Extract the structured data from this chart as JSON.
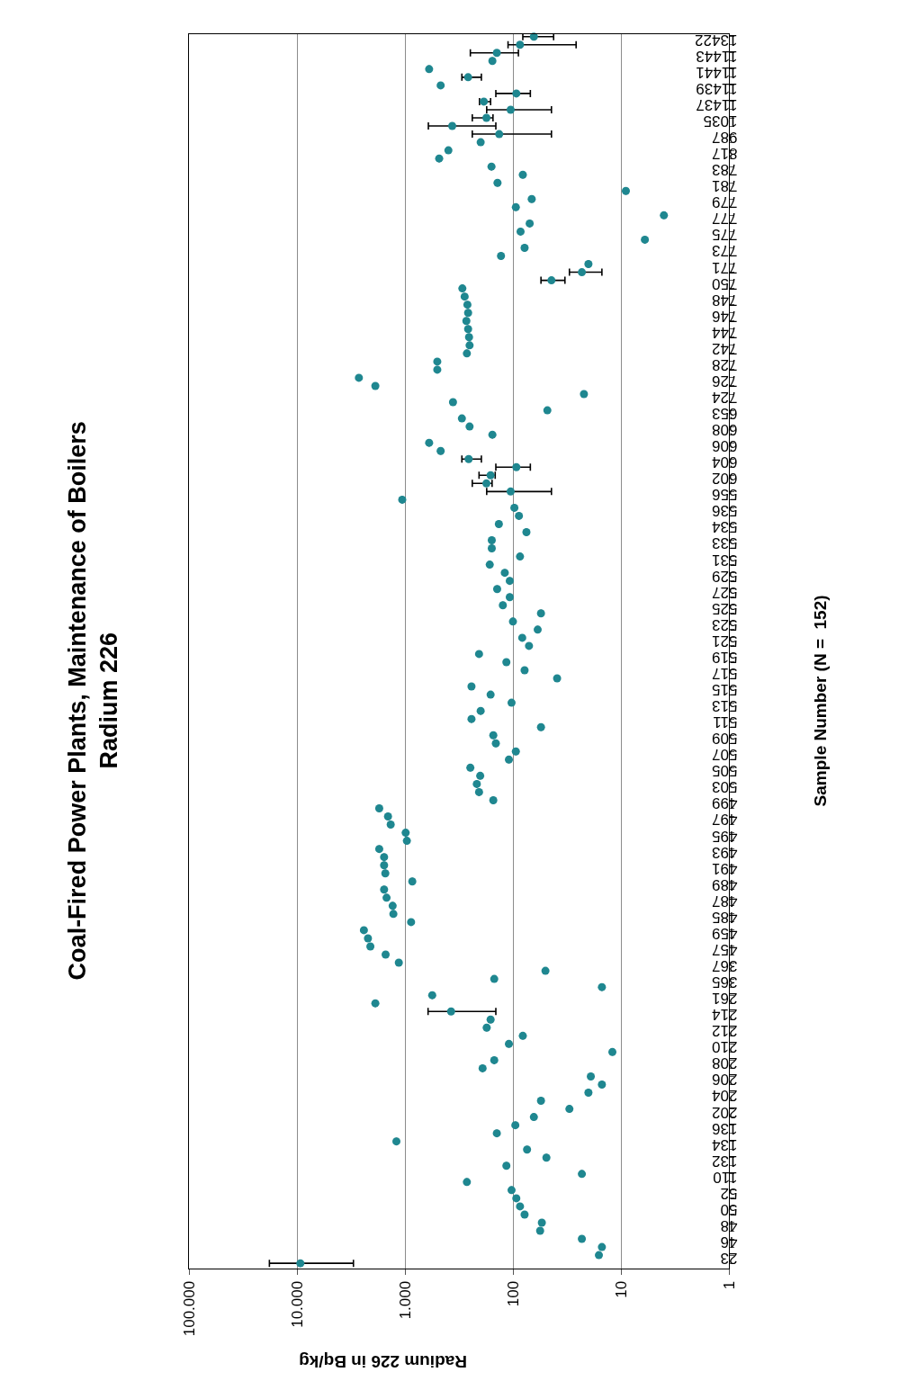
{
  "chart_data": {
    "type": "scatter",
    "title": "Coal-Fired Power Plants, Maintenance of Boilers\nRadium 226",
    "xlabel": "Radium 226 in Bq/kg",
    "ylabel": "Sample Number (N =  152)",
    "orientation": "horizontal",
    "log": "x",
    "xlim": [
      100000,
      1
    ],
    "xticks": [
      {
        "value": 100000,
        "label": "100.000"
      },
      {
        "value": 10000,
        "label": "10.000"
      },
      {
        "value": 1000,
        "label": "1.000"
      },
      100,
      10,
      1
    ],
    "grid": "x",
    "marker": "circle",
    "categories": [
      null,
      "13422",
      null,
      "11443",
      null,
      "11441",
      null,
      "11439",
      null,
      "11437",
      null,
      "1035",
      null,
      "987",
      null,
      "817",
      null,
      "783",
      null,
      "781",
      null,
      "779",
      null,
      "777",
      null,
      "775",
      null,
      "773",
      null,
      "771",
      null,
      "750",
      null,
      "748",
      null,
      "746",
      null,
      "744",
      null,
      "742",
      null,
      "728",
      null,
      "726",
      null,
      "724",
      null,
      "653",
      null,
      "608",
      null,
      "606",
      null,
      "604",
      null,
      "602",
      null,
      "556",
      null,
      "536",
      null,
      "534",
      null,
      "533",
      null,
      "531",
      null,
      "529",
      null,
      "527",
      null,
      "525",
      null,
      "523",
      null,
      "521",
      null,
      "519",
      null,
      "517",
      null,
      "515",
      null,
      "513",
      null,
      "511",
      null,
      "509",
      null,
      "507",
      null,
      "505",
      null,
      "503",
      null,
      "499",
      null,
      "497",
      null,
      "495",
      null,
      "493",
      null,
      "491",
      null,
      "489",
      null,
      "487",
      null,
      "485",
      null,
      "459",
      null,
      "457",
      null,
      "367",
      null,
      "365",
      null,
      "261",
      null,
      "214",
      null,
      "212",
      null,
      "210",
      null,
      "208",
      null,
      "206",
      null,
      "204",
      null,
      "202",
      null,
      "136",
      null,
      "134",
      null,
      "132",
      null,
      "110",
      null,
      "52",
      null,
      "50",
      null,
      "48",
      null,
      "46",
      null,
      "23"
    ],
    "series": [
      {
        "color": "#1f8790",
        "values": [
          64,
          86,
          141,
          155,
          597,
          260,
          467,
          93,
          186,
          105,
          176,
          365,
          134,
          199,
          396,
          482,
          158,
          81,
          139,
          9,
          67,
          94,
          4,
          70,
          85,
          6,
          78,
          129,
          20,
          23,
          44,
          294,
          280,
          264,
          260,
          270,
          260,
          255,
          252,
          267,
          502,
          502,
          2670,
          1880,
          22,
          359,
          48,
          297,
          252,
          155,
          597,
          467,
          257,
          93,
          161,
          176,
          105,
          1060,
          97,
          88,
          135,
          75,
          157,
          157,
          86,
          164,
          119,
          107,
          140,
          107,
          124,
          55,
          100,
          59,
          82,
          71,
          206,
          115,
          78,
          39,
          242,
          161,
          103,
          199,
          242,
          55,
          152,
          144,
          94,
          109,
          248,
          201,
          216,
          206,
          152,
          1730,
          1435,
          1355,
          985,
          960,
          1730,
          1560,
          1560,
          1520,
          855,
          1560,
          1480,
          1300,
          1280,
          877,
          2400,
          2200,
          2090,
          1510,
          1140,
          50,
          149,
          15,
          559,
          1880,
          374,
          161,
          175,
          81,
          109,
          12,
          149,
          191,
          19,
          15,
          20,
          55,
          30,
          64,
          95,
          141,
          1200,
          74,
          49,
          115,
          23,
          267,
          103,
          93,
          86,
          78,
          54,
          56,
          23,
          15,
          16,
          9300
        ],
        "errors": [
          [
            42,
            81
          ],
          [
            26,
            111
          ],
          [
            89,
            248
          ],
          null,
          null,
          [
            196,
            297
          ],
          null,
          [
            69,
            144
          ],
          [
            161,
            204
          ],
          [
            44,
            175
          ],
          [
            153,
            238
          ],
          [
            144,
            607
          ],
          [
            44,
            238
          ],
          null,
          null,
          null,
          null,
          null,
          null,
          null,
          null,
          null,
          null,
          null,
          null,
          null,
          null,
          null,
          null,
          [
            15,
            30
          ],
          [
            33,
            55
          ],
          null,
          null,
          null,
          null,
          null,
          null,
          null,
          null,
          null,
          null,
          null,
          null,
          null,
          null,
          null,
          null,
          null,
          null,
          null,
          null,
          null,
          [
            196,
            297
          ],
          [
            69,
            144
          ],
          [
            146,
            206
          ],
          [
            156,
            238
          ],
          [
            44,
            175
          ],
          null,
          null,
          null,
          null,
          null,
          null,
          null,
          null,
          null,
          null,
          null,
          null,
          null,
          null,
          null,
          null,
          null,
          null,
          null,
          null,
          null,
          null,
          null,
          null,
          null,
          null,
          null,
          null,
          null,
          null,
          null,
          null,
          null,
          null,
          null,
          null,
          null,
          null,
          null,
          null,
          null,
          null,
          null,
          null,
          null,
          null,
          null,
          null,
          null,
          null,
          null,
          null,
          null,
          null,
          null,
          null,
          null,
          null,
          null,
          null,
          null,
          null,
          null,
          [
            144,
            611
          ],
          null,
          null,
          null,
          null,
          null,
          null,
          null,
          null,
          null,
          null,
          null,
          null,
          null,
          null,
          null,
          null,
          null,
          null,
          null,
          null,
          null,
          null,
          null,
          null,
          null,
          null,
          null,
          null,
          null,
          null,
          [
            3000,
            18000
          ]
        ]
      }
    ]
  }
}
